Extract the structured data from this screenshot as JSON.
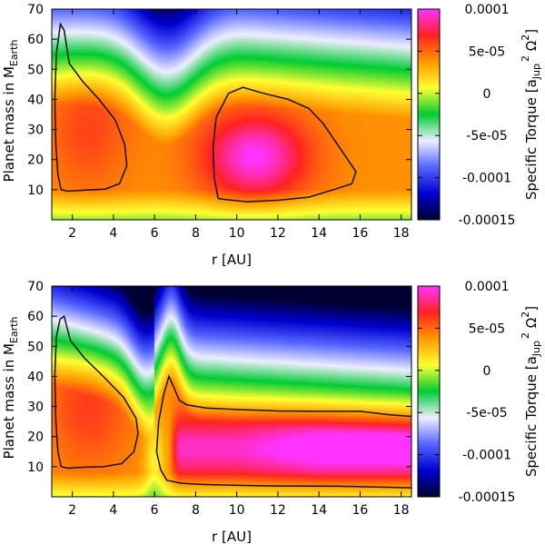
{
  "chart_data": [
    {
      "type": "heatmap",
      "panel": "top",
      "xlabel": "r [AU]",
      "ylabel_main": "Planet mass in M",
      "ylabel_sub": "Earth",
      "xlim": [
        1.0,
        18.5
      ],
      "ylim": [
        0,
        70
      ],
      "x_ticks": [
        2,
        4,
        6,
        8,
        10,
        12,
        14,
        16,
        18
      ],
      "y_ticks": [
        10,
        20,
        30,
        40,
        50,
        60,
        70
      ],
      "colorbar": {
        "label": "Specific Torque [a_Jup^2 Ω^2]",
        "label_main": "Specific Torque [a",
        "label_sub": "Jup",
        "label_sup": "2",
        "label_omega": " Ω",
        "label_omega_sup": "2",
        "label_end": "]",
        "range": [
          -0.00015,
          0.0001
        ],
        "tick_values": [
          0.0001,
          5e-05,
          0,
          -5e-05,
          -0.0001,
          -0.00015
        ],
        "tick_labels": [
          "0.0001",
          "5e-05",
          "0",
          "-5e-05",
          "-0.0001",
          "-0.00015"
        ],
        "colors": [
          "#000033",
          "#0000d0",
          "#5566ff",
          "#eeeeff",
          "#00cc33",
          "#ffff33",
          "#ff9900",
          "#ff2222",
          "#ff33ff"
        ]
      },
      "description": "Zero-torque contours enclose two positive-torque regions: r≈1.3–4.7 AU, M≈10–65 and r≈9–15.8 AU, M≈7–45 (peak ~1e-4 near r≈11, M≈20)",
      "zero_contours": [
        [
          [
            1.45,
            10
          ],
          [
            1.3,
            15
          ],
          [
            1.2,
            25
          ],
          [
            1.15,
            40
          ],
          [
            1.22,
            55
          ],
          [
            1.42,
            65
          ],
          [
            1.6,
            63
          ],
          [
            1.85,
            52
          ],
          [
            2.5,
            46
          ],
          [
            3.3,
            40
          ],
          [
            4.1,
            33
          ],
          [
            4.55,
            25
          ],
          [
            4.65,
            18
          ],
          [
            4.3,
            12
          ],
          [
            3.6,
            10.2
          ],
          [
            2.5,
            9.8
          ],
          [
            1.8,
            9.5
          ],
          [
            1.45,
            10
          ]
        ],
        [
          [
            9.1,
            7
          ],
          [
            8.9,
            14
          ],
          [
            8.85,
            24
          ],
          [
            9.0,
            34
          ],
          [
            9.6,
            42
          ],
          [
            10.3,
            44
          ],
          [
            11.3,
            42
          ],
          [
            12.5,
            40
          ],
          [
            13.5,
            37
          ],
          [
            14.2,
            32
          ],
          [
            14.8,
            26
          ],
          [
            15.3,
            21
          ],
          [
            15.8,
            16
          ],
          [
            15.6,
            12
          ],
          [
            14.8,
            10.2
          ],
          [
            13.5,
            7.5
          ],
          [
            12,
            6.5
          ],
          [
            10.5,
            6
          ],
          [
            9.1,
            7
          ]
        ]
      ]
    },
    {
      "type": "heatmap",
      "panel": "bottom",
      "xlabel": "r [AU]",
      "ylabel_main": "Planet mass in M",
      "ylabel_sub": "Earth",
      "xlim": [
        1.0,
        18.5
      ],
      "ylim": [
        0,
        70
      ],
      "x_ticks": [
        2,
        4,
        6,
        8,
        10,
        12,
        14,
        16,
        18
      ],
      "y_ticks": [
        10,
        20,
        30,
        40,
        50,
        60,
        70
      ],
      "colorbar": {
        "label": "Specific Torque [a_Jup^2 Ω^2]",
        "label_main": "Specific Torque [a",
        "label_sub": "Jup",
        "label_sup": "2",
        "label_omega": " Ω",
        "label_omega_sup": "2",
        "label_end": "]",
        "range": [
          -0.00015,
          0.0001
        ],
        "tick_values": [
          0.0001,
          5e-05,
          0,
          -5e-05,
          -0.0001,
          -0.00015
        ],
        "tick_labels": [
          "0.0001",
          "5e-05",
          "0",
          "-5e-05",
          "-0.0001",
          "-0.00015"
        ],
        "colors": [
          "#000033",
          "#0000d0",
          "#5566ff",
          "#eeeeff",
          "#00cc33",
          "#ffff33",
          "#ff9900",
          "#ff2222",
          "#ff33ff"
        ]
      },
      "description": "Positive-torque region at r≈1.3–5.2 AU, M≈10–60 and a broad band from r≈6.5 AU outward, M≈4–28, peaking beyond 12 AU",
      "zero_contours": [
        [
          [
            1.45,
            10
          ],
          [
            1.3,
            15
          ],
          [
            1.2,
            25
          ],
          [
            1.15,
            40
          ],
          [
            1.22,
            53
          ],
          [
            1.4,
            59
          ],
          [
            1.6,
            60
          ],
          [
            1.9,
            52
          ],
          [
            2.6,
            46
          ],
          [
            3.5,
            40
          ],
          [
            4.5,
            33
          ],
          [
            5.1,
            26
          ],
          [
            5.2,
            21
          ],
          [
            5.0,
            15
          ],
          [
            4.4,
            11
          ],
          [
            3.5,
            10
          ],
          [
            2.5,
            9.8
          ],
          [
            1.8,
            9.5
          ],
          [
            1.45,
            10
          ]
        ],
        [
          [
            18.5,
            3.0
          ],
          [
            15,
            3.5
          ],
          [
            12,
            3.6
          ],
          [
            10,
            3.8
          ],
          [
            8.3,
            4.1
          ],
          [
            7.3,
            4.5
          ],
          [
            6.6,
            5.5
          ],
          [
            6.3,
            9
          ],
          [
            6.1,
            15
          ],
          [
            6.2,
            25
          ],
          [
            6.45,
            34
          ],
          [
            6.7,
            40
          ],
          [
            6.9,
            37
          ],
          [
            7.2,
            32
          ],
          [
            7.6,
            30.5
          ],
          [
            8.5,
            29.5
          ],
          [
            10,
            29
          ],
          [
            12,
            28.5
          ],
          [
            14,
            28.4
          ],
          [
            16,
            28.4
          ],
          [
            17.5,
            27.2
          ],
          [
            18.5,
            26.7
          ]
        ]
      ]
    }
  ]
}
